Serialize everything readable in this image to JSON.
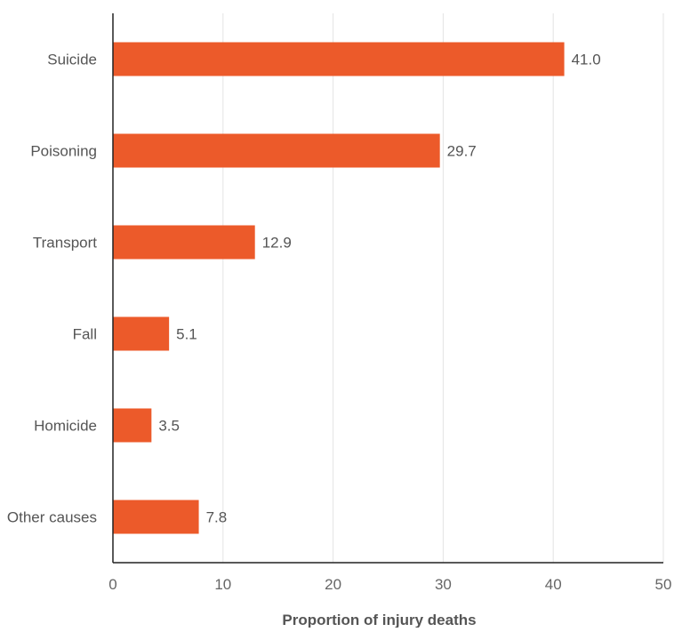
{
  "chart_data": {
    "type": "bar",
    "orientation": "horizontal",
    "categories": [
      "Suicide",
      "Poisoning",
      "Transport",
      "Fall",
      "Homicide",
      "Other causes"
    ],
    "values": [
      41.0,
      29.7,
      12.9,
      5.1,
      3.5,
      7.8
    ],
    "value_labels": [
      "41.0",
      "29.7",
      "12.9",
      "5.1",
      "3.5",
      "7.8"
    ],
    "title": "",
    "xlabel": "Proportion of injury deaths",
    "ylabel": "",
    "xlim": [
      0,
      50
    ],
    "xticks": [
      0,
      10,
      20,
      30,
      40,
      50
    ],
    "grid": "vertical",
    "bar_color": "#EC5A2A"
  }
}
